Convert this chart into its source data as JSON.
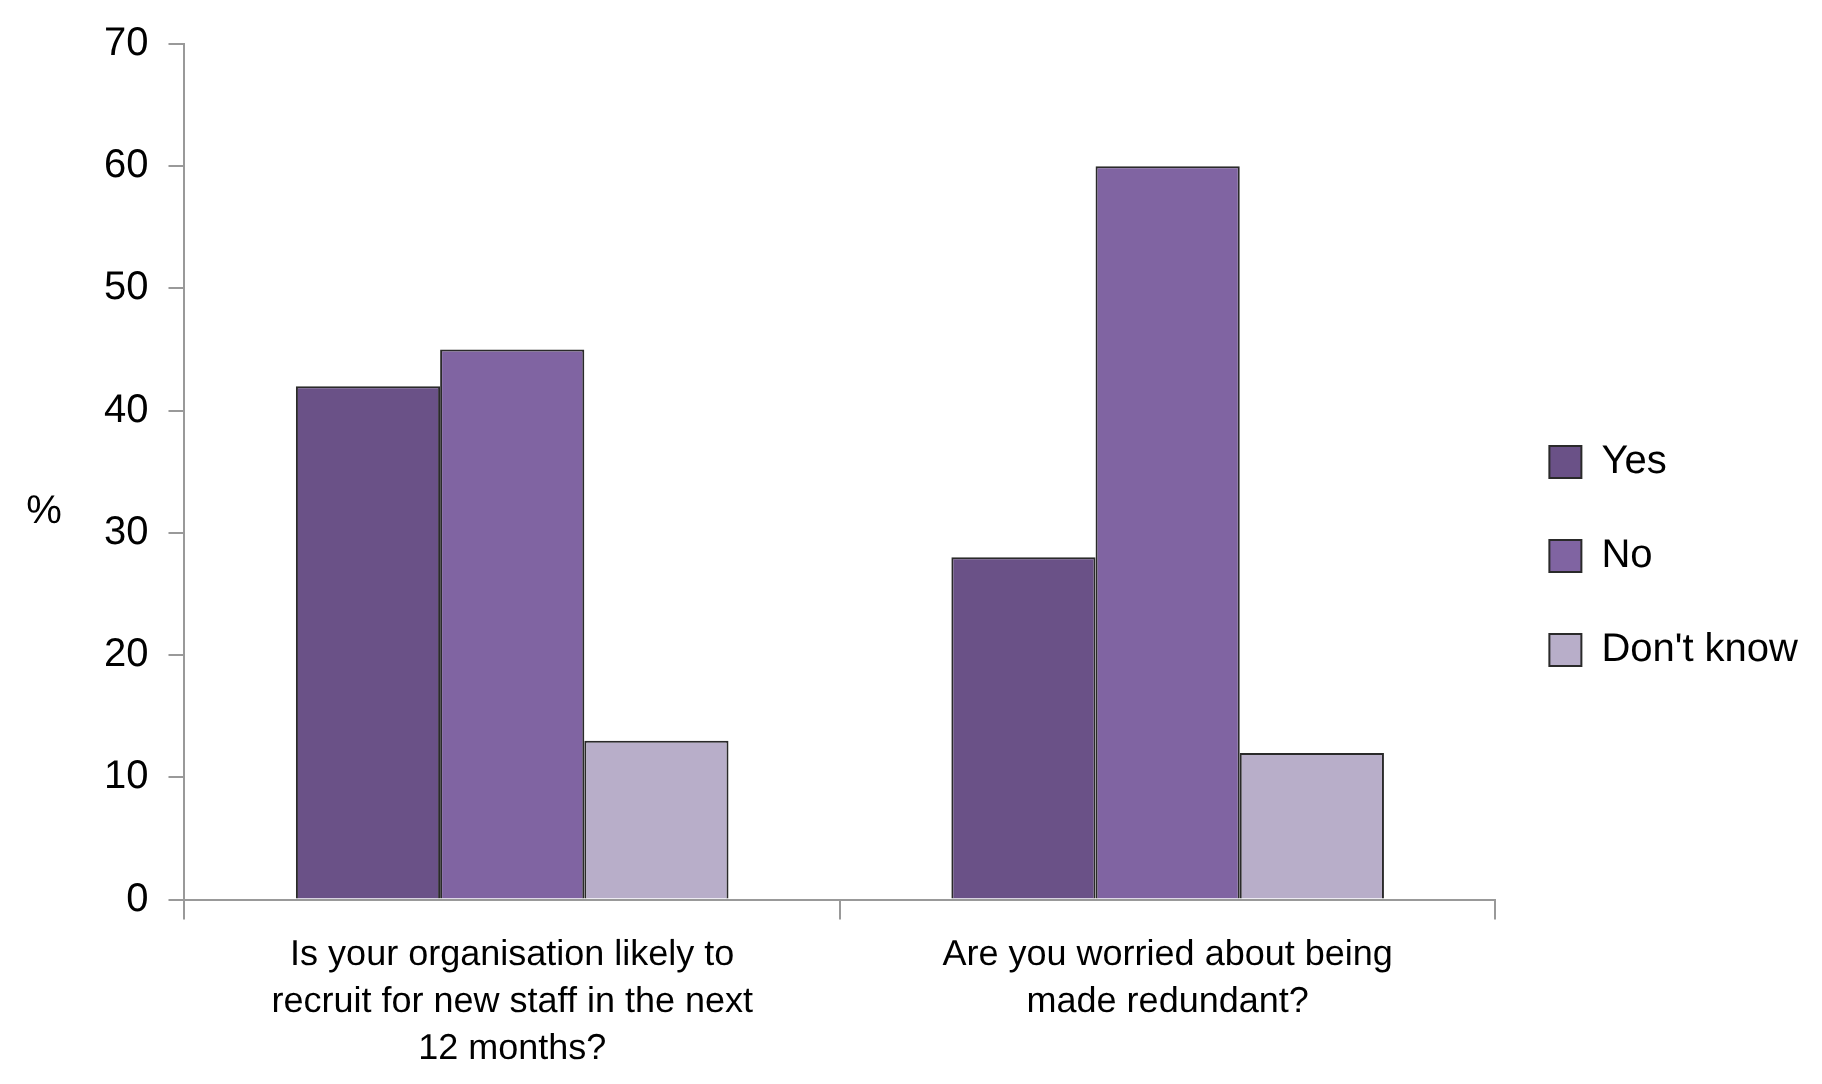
{
  "chart_data": {
    "type": "bar",
    "ylabel": "%",
    "categories": [
      "Is your organisation likely to recruit for new staff in the next 12 months?",
      "Are you worried about being made redundant?"
    ],
    "series": [
      {
        "name": "Yes",
        "color": "#6a5187",
        "values": [
          42,
          28
        ]
      },
      {
        "name": "No",
        "color": "#8064a2",
        "values": [
          45,
          60
        ]
      },
      {
        "name": "Don't know",
        "color": "#b8aec9",
        "values": [
          13,
          12
        ]
      }
    ],
    "ylim": [
      0,
      70
    ],
    "yticks": [
      0,
      10,
      20,
      30,
      40,
      50,
      60,
      70
    ],
    "legend": "right"
  }
}
